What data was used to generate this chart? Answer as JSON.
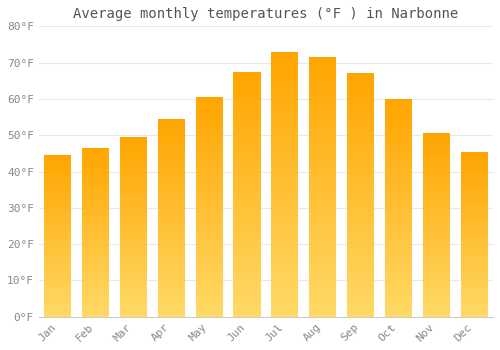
{
  "title": "Average monthly temperatures (°F ) in Narbonne",
  "categories": [
    "Jan",
    "Feb",
    "Mar",
    "Apr",
    "May",
    "Jun",
    "Jul",
    "Aug",
    "Sep",
    "Oct",
    "Nov",
    "Dec"
  ],
  "values": [
    44.5,
    46.5,
    49.5,
    54.5,
    60.5,
    67.5,
    73.0,
    71.5,
    67.0,
    60.0,
    50.5,
    45.5
  ],
  "bar_color_bottom": "#FFD966",
  "bar_color_top": "#FFA500",
  "background_color": "#ffffff",
  "plot_bg_color": "#ffffff",
  "grid_color": "#e8e8e8",
  "text_color": "#888888",
  "title_color": "#555555",
  "ylim": [
    0,
    80
  ],
  "yticks": [
    0,
    10,
    20,
    30,
    40,
    50,
    60,
    70,
    80
  ],
  "ytick_labels": [
    "0°F",
    "10°F",
    "20°F",
    "30°F",
    "40°F",
    "50°F",
    "60°F",
    "70°F",
    "80°F"
  ],
  "title_fontsize": 10,
  "tick_fontsize": 8,
  "font_family": "monospace",
  "bar_width": 0.72,
  "gradient_steps": 200
}
